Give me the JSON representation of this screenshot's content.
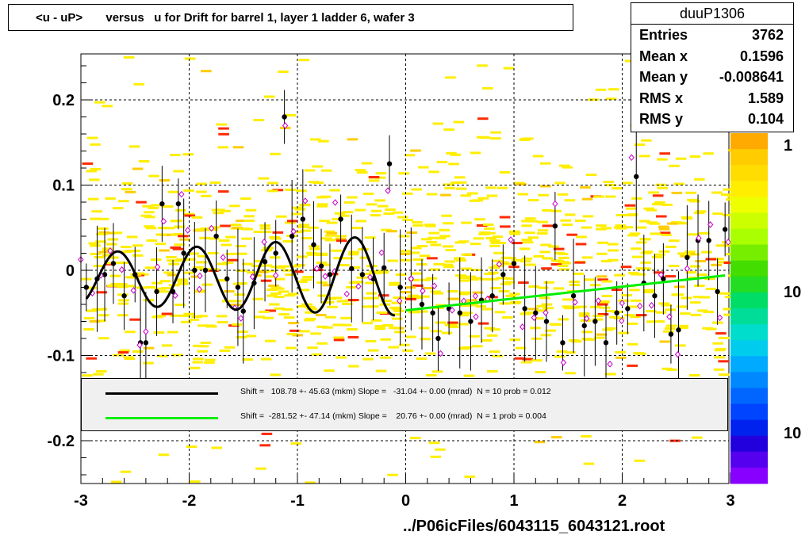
{
  "title": "<u - uP>       versus   u for Drift for barrel 1, layer 1 ladder 6, wafer 3",
  "stats": {
    "name": "duuP1306",
    "rows": [
      {
        "label": "Entries",
        "value": "3762"
      },
      {
        "label": "Mean x",
        "value": "0.1596"
      },
      {
        "label": "Mean y",
        "value": "-0.008641"
      },
      {
        "label": "RMS x",
        "value": "1.589"
      },
      {
        "label": "RMS y",
        "value": "0.104"
      }
    ]
  },
  "legend": [
    {
      "color": "#000000",
      "text": "Shift =   108.78 +- 45.63 (mkm) Slope =   -31.04 +- 0.00 (mrad)  N = 10 prob = 0.012"
    },
    {
      "color": "#00ee00",
      "text": "Shift =  -281.52 +- 47.14 (mkm) Slope =    20.76 +- 0.00 (mrad)  N = 1 prob = 0.004"
    }
  ],
  "file_label": "../P06icFiles/6043115_6043121.root",
  "palette_labels": [
    "1",
    "10",
    "10"
  ],
  "chart_data": {
    "type": "scatter",
    "xlim": [
      -3,
      3
    ],
    "ylim": [
      -0.25,
      0.25
    ],
    "x_ticks": [
      -3,
      -2,
      -1,
      0,
      1,
      2,
      3
    ],
    "x_tick_labels": [
      "-3",
      "-2",
      "-1",
      "0",
      "1",
      "2",
      "3"
    ],
    "y_ticks": [
      -0.2,
      -0.1,
      0,
      0.1,
      0.2
    ],
    "y_tick_labels": [
      "-0.2",
      "-0.1",
      "0",
      "0.1",
      "0.2"
    ],
    "grid": true,
    "black_fit": {
      "x_range": [
        -2.95,
        -0.1
      ],
      "form": "sinusoidal",
      "color": "#000000"
    },
    "green_fit": {
      "x": [
        0,
        2.95
      ],
      "y": [
        -0.047,
        -0.006
      ],
      "color": "#00ee00"
    },
    "profile_points": [
      {
        "x": -2.95,
        "y": -0.02
      },
      {
        "x": -2.85,
        "y": -0.01
      },
      {
        "x": -2.78,
        "y": -0.005
      },
      {
        "x": -2.7,
        "y": 0.008
      },
      {
        "x": -2.6,
        "y": -0.03
      },
      {
        "x": -2.5,
        "y": -0.005
      },
      {
        "x": -2.45,
        "y": -0.085
      },
      {
        "x": -2.4,
        "y": -0.085
      },
      {
        "x": -2.3,
        "y": -0.025
      },
      {
        "x": -2.25,
        "y": 0.078
      },
      {
        "x": -2.15,
        "y": -0.025
      },
      {
        "x": -2.1,
        "y": 0.078
      },
      {
        "x": -2.05,
        "y": 0.02
      },
      {
        "x": -1.95,
        "y": 0.0
      },
      {
        "x": -1.85,
        "y": 0.0
      },
      {
        "x": -1.75,
        "y": 0.04
      },
      {
        "x": -1.65,
        "y": -0.01
      },
      {
        "x": -1.55,
        "y": -0.02
      },
      {
        "x": -1.5,
        "y": -0.048
      },
      {
        "x": -1.4,
        "y": -0.015
      },
      {
        "x": -1.3,
        "y": 0.01
      },
      {
        "x": -1.2,
        "y": 0.02
      },
      {
        "x": -1.12,
        "y": 0.18
      },
      {
        "x": -1.05,
        "y": 0.04
      },
      {
        "x": -0.95,
        "y": 0.06
      },
      {
        "x": -0.85,
        "y": 0.03
      },
      {
        "x": -0.78,
        "y": 0.005
      },
      {
        "x": -0.7,
        "y": -0.005
      },
      {
        "x": -0.6,
        "y": 0.06
      },
      {
        "x": -0.5,
        "y": 0.002
      },
      {
        "x": -0.4,
        "y": -0.005
      },
      {
        "x": -0.3,
        "y": -0.01
      },
      {
        "x": -0.2,
        "y": 0.003
      },
      {
        "x": -0.15,
        "y": 0.125
      },
      {
        "x": -0.05,
        "y": -0.02
      },
      {
        "x": 0.05,
        "y": -0.01
      },
      {
        "x": 0.15,
        "y": -0.04
      },
      {
        "x": 0.25,
        "y": -0.05
      },
      {
        "x": 0.3,
        "y": -0.08
      },
      {
        "x": 0.4,
        "y": -0.045
      },
      {
        "x": 0.5,
        "y": -0.05
      },
      {
        "x": 0.6,
        "y": -0.06
      },
      {
        "x": 0.7,
        "y": -0.035
      },
      {
        "x": 0.8,
        "y": -0.03
      },
      {
        "x": 0.9,
        "y": -0.005
      },
      {
        "x": 1.0,
        "y": 0.008
      },
      {
        "x": 1.1,
        "y": -0.045
      },
      {
        "x": 1.2,
        "y": -0.05
      },
      {
        "x": 1.3,
        "y": -0.06
      },
      {
        "x": 1.38,
        "y": 0.052
      },
      {
        "x": 1.45,
        "y": -0.085
      },
      {
        "x": 1.55,
        "y": -0.03
      },
      {
        "x": 1.65,
        "y": -0.065
      },
      {
        "x": 1.75,
        "y": -0.06
      },
      {
        "x": 1.85,
        "y": -0.085
      },
      {
        "x": 1.95,
        "y": -0.05
      },
      {
        "x": 2.05,
        "y": -0.045
      },
      {
        "x": 2.13,
        "y": 0.11
      },
      {
        "x": 2.2,
        "y": -0.015
      },
      {
        "x": 2.3,
        "y": -0.03
      },
      {
        "x": 2.38,
        "y": -0.01
      },
      {
        "x": 2.45,
        "y": -0.075
      },
      {
        "x": 2.52,
        "y": -0.07
      },
      {
        "x": 2.6,
        "y": 0.015
      },
      {
        "x": 2.7,
        "y": 0.035
      },
      {
        "x": 2.8,
        "y": 0.035
      },
      {
        "x": 2.88,
        "y": -0.025
      },
      {
        "x": 2.95,
        "y": 0.048
      }
    ]
  }
}
